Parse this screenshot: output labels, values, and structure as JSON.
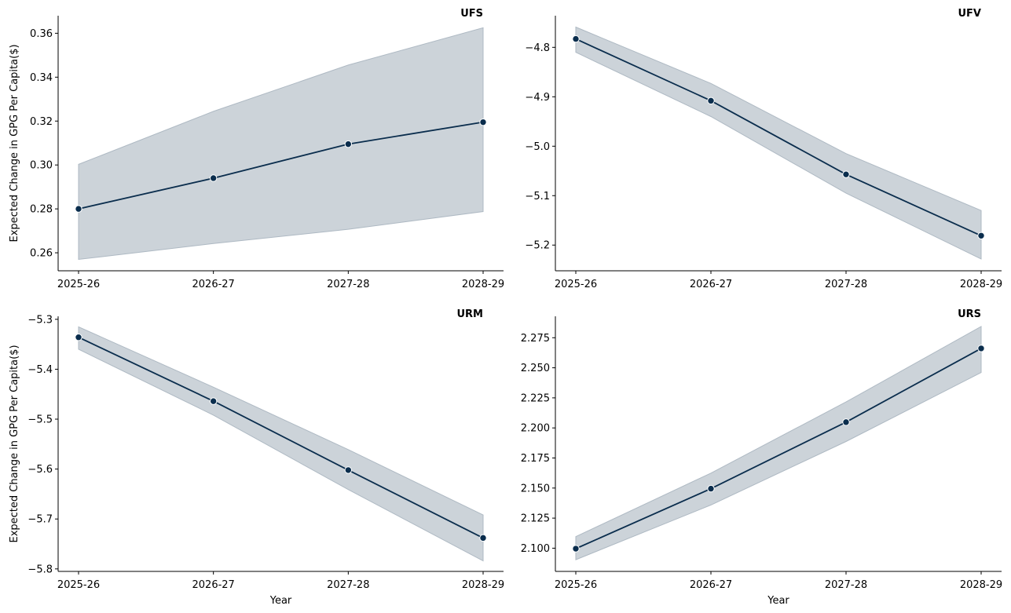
{
  "chart_data": [
    {
      "type": "line",
      "title": "UFS",
      "xlabel": "",
      "ylabel": "Expected Change in GPG Per Capita($)",
      "x": [
        "2025-26",
        "2026-27",
        "2027-28",
        "2028-29"
      ],
      "series": [
        {
          "values": [
            0.28,
            0.294,
            0.3095,
            0.3195
          ],
          "lower": [
            0.257,
            0.2642,
            0.2707,
            0.2788
          ],
          "upper": [
            0.3003,
            0.3244,
            0.3455,
            0.3625
          ]
        }
      ],
      "yticks": [
        0.26,
        0.28,
        0.3,
        0.32,
        0.34,
        0.36
      ],
      "ytick_labels": [
        "0.26",
        "0.28",
        "0.30",
        "0.32",
        "0.34",
        "0.36"
      ],
      "ylim": [
        0.2518,
        0.368
      ],
      "grid": false
    },
    {
      "type": "line",
      "title": "UFV",
      "xlabel": "",
      "ylabel": "",
      "x": [
        "2025-26",
        "2026-27",
        "2027-28",
        "2028-29"
      ],
      "series": [
        {
          "values": [
            -4.783,
            -4.908,
            -5.057,
            -5.181
          ],
          "lower": [
            -4.81,
            -4.94,
            -5.095,
            -5.228
          ],
          "upper": [
            -4.759,
            -4.873,
            -5.015,
            -5.13
          ]
        }
      ],
      "yticks": [
        -4.8,
        -4.9,
        -5.0,
        -5.1,
        -5.2
      ],
      "ytick_labels": [
        "−4.8",
        "−4.9",
        "−5.0",
        "−5.1",
        "−5.2"
      ],
      "ylim": [
        -5.252,
        -4.736
      ],
      "grid": false
    },
    {
      "type": "line",
      "title": "URM",
      "xlabel": "Year",
      "ylabel": "Expected Change in GPG Per Capita($)",
      "x": [
        "2025-26",
        "2026-27",
        "2027-28",
        "2028-29"
      ],
      "series": [
        {
          "values": [
            -5.336,
            -5.464,
            -5.602,
            -5.738
          ],
          "lower": [
            -5.36,
            -5.492,
            -5.641,
            -5.784
          ],
          "upper": [
            -5.315,
            -5.436,
            -5.561,
            -5.692
          ]
        }
      ],
      "yticks": [
        -5.3,
        -5.4,
        -5.5,
        -5.6,
        -5.7,
        -5.8
      ],
      "ytick_labels": [
        "−5.3",
        "−5.4",
        "−5.5",
        "−5.6",
        "−5.7",
        "−5.8"
      ],
      "ylim": [
        -5.805,
        -5.294
      ],
      "grid": false
    },
    {
      "type": "line",
      "title": "URS",
      "xlabel": "Year",
      "ylabel": "",
      "x": [
        "2025-26",
        "2026-27",
        "2027-28",
        "2028-29"
      ],
      "series": [
        {
          "values": [
            2.0996,
            2.1495,
            2.2048,
            2.2661
          ],
          "lower": [
            2.0904,
            2.1359,
            2.1887,
            2.2461
          ],
          "upper": [
            2.1096,
            2.1624,
            2.2216,
            2.2843
          ]
        }
      ],
      "yticks": [
        2.1,
        2.125,
        2.15,
        2.175,
        2.2,
        2.225,
        2.25,
        2.275
      ],
      "ytick_labels": [
        "2.100",
        "2.125",
        "2.150",
        "2.175",
        "2.200",
        "2.225",
        "2.250",
        "2.275"
      ],
      "ylim": [
        2.0807,
        2.2928
      ],
      "grid": false
    }
  ],
  "colors": {
    "line": "#0a2d4d",
    "band": "#ccd3d9",
    "band_edge": "#aeb9c3",
    "marker_edge": "#ffffff",
    "axis": "#000000"
  }
}
